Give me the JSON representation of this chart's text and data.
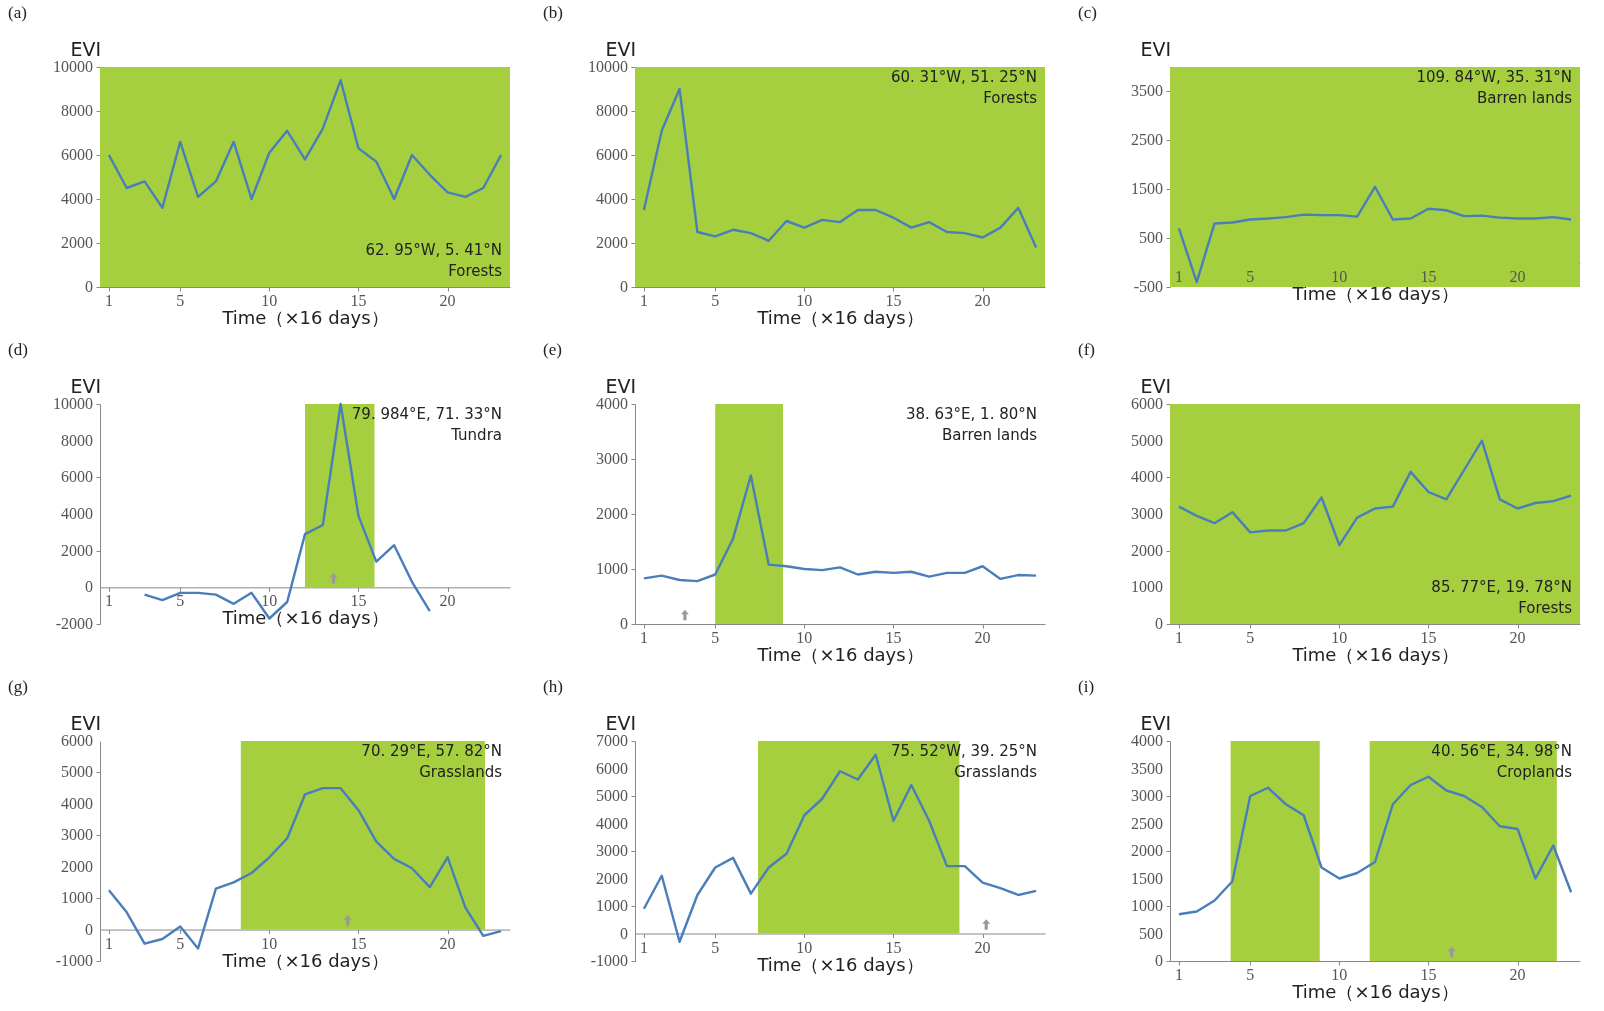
{
  "chart_data": [
    {
      "type": "line",
      "title": "(a)",
      "ylabel": "EVI",
      "xlabel": "Time（×16 days）",
      "x": [
        1,
        2,
        3,
        4,
        5,
        6,
        7,
        8,
        9,
        10,
        11,
        12,
        13,
        14,
        15,
        16,
        17,
        18,
        19,
        20,
        21,
        22,
        23
      ],
      "series": [
        {
          "color": "#4a7ebb",
          "values": [
            6000,
            4500,
            4800,
            3600,
            6600,
            4100,
            4800,
            6600,
            4000,
            6100,
            7100,
            5800,
            7200,
            9400,
            6300,
            5700,
            4000,
            6000,
            5100,
            4300,
            4100,
            4500,
            6000
          ]
        }
      ],
      "xlim": [
        0.5,
        23.5
      ],
      "xticks": [
        1,
        5,
        10,
        15,
        20
      ],
      "ylim": [
        0,
        10000
      ],
      "yticks": [
        0,
        2000,
        4000,
        6000,
        8000,
        10000
      ],
      "bands": [
        {
          "axis": "x",
          "from": 0.5,
          "to": 23.5,
          "color": "#a5cf3f"
        }
      ],
      "annotations": [
        "62. 95°W, 5. 41°N",
        "Forests"
      ],
      "grid": false
    },
    {
      "type": "line",
      "title": "(b)",
      "ylabel": "EVI",
      "xlabel": "Time（×16 days）",
      "x": [
        1,
        2,
        3,
        4,
        5,
        6,
        7,
        8,
        9,
        10,
        11,
        12,
        13,
        14,
        15,
        16,
        17,
        18,
        19,
        20,
        21,
        22,
        23
      ],
      "series": [
        {
          "color": "#4a7ebb",
          "values": [
            3500,
            7100,
            9000,
            2500,
            2300,
            2600,
            2450,
            2100,
            3000,
            2700,
            3050,
            2950,
            3500,
            3500,
            3150,
            2700,
            2950,
            2500,
            2450,
            2250,
            2700,
            3600,
            1800
          ]
        }
      ],
      "xlim": [
        0.5,
        23.5
      ],
      "xticks": [
        1,
        5,
        10,
        15,
        20
      ],
      "ylim": [
        0,
        10000
      ],
      "yticks": [
        0,
        2000,
        4000,
        6000,
        8000,
        10000
      ],
      "bands": [
        {
          "axis": "x",
          "from": 0.5,
          "to": 23.5,
          "color": "#a5cf3f"
        }
      ],
      "annotations": [
        "60. 31°W, 51. 25°N",
        "Forests"
      ],
      "grid": false
    },
    {
      "type": "line",
      "title": "(c)",
      "ylabel": "EVI",
      "xlabel": "Time（×16 days）",
      "x": [
        1,
        2,
        3,
        4,
        5,
        6,
        7,
        8,
        9,
        10,
        11,
        12,
        13,
        14,
        15,
        16,
        17,
        18,
        19,
        20,
        21,
        22,
        23
      ],
      "series": [
        {
          "color": "#4a7ebb",
          "values": [
            700,
            -400,
            800,
            820,
            880,
            900,
            930,
            980,
            970,
            970,
            940,
            1550,
            880,
            900,
            1100,
            1070,
            950,
            960,
            920,
            900,
            900,
            930,
            880
          ]
        }
      ],
      "xlim": [
        0.5,
        23.5
      ],
      "xticks": [
        1,
        5,
        10,
        15,
        20
      ],
      "ylim": [
        -500,
        4000
      ],
      "yticks": [
        -500,
        500,
        1500,
        2500,
        3500
      ],
      "bands": [
        {
          "axis": "x",
          "from": 0.5,
          "to": 23.5,
          "color": "#a5cf3f"
        }
      ],
      "annotations": [
        "109. 84°W, 35. 31°N",
        "Barren lands"
      ],
      "grid": false
    },
    {
      "type": "line",
      "title": "(d)",
      "ylabel": "EVI",
      "xlabel": "Time（×16 days）",
      "x": [
        3,
        4,
        5,
        6,
        7,
        8,
        9,
        10,
        11,
        12,
        13,
        14,
        15,
        16,
        17,
        18,
        19
      ],
      "series": [
        {
          "color": "#4a7ebb",
          "values": [
            -400,
            -700,
            -300,
            -300,
            -400,
            -900,
            -300,
            -1700,
            -800,
            2900,
            3400,
            10000,
            3900,
            1400,
            2300,
            300,
            -1300
          ]
        }
      ],
      "xlim": [
        0.5,
        23.5
      ],
      "xticks": [
        1,
        5,
        10,
        15,
        20
      ],
      "ylim": [
        -2000,
        10000
      ],
      "yticks": [
        -2000,
        0,
        2000,
        4000,
        6000,
        8000,
        10000
      ],
      "bands": [
        {
          "axis": "x",
          "from": 12,
          "to": 15.9,
          "color": "#a5cf3f"
        }
      ],
      "annotations": [
        "79. 984°E, 71. 33°N",
        "Tundra"
      ],
      "grid": false
    },
    {
      "type": "line",
      "title": "(e)",
      "ylabel": "EVI",
      "xlabel": "Time（×16 days）",
      "x": [
        1,
        2,
        3,
        4,
        5,
        6,
        7,
        8,
        9,
        10,
        11,
        12,
        13,
        14,
        15,
        16,
        17,
        18,
        19,
        20,
        21,
        22,
        23
      ],
      "series": [
        {
          "color": "#4a7ebb",
          "values": [
            830,
            880,
            800,
            780,
            900,
            1550,
            2700,
            1080,
            1050,
            1000,
            980,
            1030,
            900,
            950,
            930,
            950,
            860,
            930,
            930,
            1050,
            820,
            890,
            880
          ]
        }
      ],
      "xlim": [
        0.5,
        23.5
      ],
      "xticks": [
        1,
        5,
        10,
        15,
        20
      ],
      "ylim": [
        0,
        4000
      ],
      "yticks": [
        0,
        1000,
        2000,
        3000,
        4000
      ],
      "bands": [
        {
          "axis": "x",
          "from": 5,
          "to": 8.8,
          "color": "#a5cf3f"
        }
      ],
      "annotations": [
        "38. 63°E, 1. 80°N",
        "Barren lands"
      ],
      "grid": false
    },
    {
      "type": "line",
      "title": "(f)",
      "ylabel": "EVI",
      "xlabel": "Time（×16 days）",
      "x": [
        1,
        2,
        3,
        4,
        5,
        6,
        7,
        8,
        9,
        10,
        11,
        12,
        13,
        14,
        15,
        16,
        17,
        18,
        19,
        20,
        21,
        22,
        23
      ],
      "series": [
        {
          "color": "#4a7ebb",
          "values": [
            3200,
            2950,
            2750,
            3050,
            2500,
            2550,
            2550,
            2750,
            3450,
            2150,
            2900,
            3150,
            3200,
            4150,
            3600,
            3400,
            4200,
            5000,
            3400,
            3150,
            3300,
            3350,
            3500
          ]
        }
      ],
      "xlim": [
        0.5,
        23.5
      ],
      "xticks": [
        1,
        5,
        10,
        15,
        20
      ],
      "ylim": [
        0,
        6000
      ],
      "yticks": [
        0,
        1000,
        2000,
        3000,
        4000,
        5000,
        6000
      ],
      "bands": [
        {
          "axis": "x",
          "from": 0.5,
          "to": 23.5,
          "color": "#a5cf3f"
        }
      ],
      "annotations": [
        "85. 77°E, 19. 78°N",
        "Forests"
      ],
      "grid": false
    },
    {
      "type": "line",
      "title": "(g)",
      "ylabel": "EVI",
      "xlabel": "Time（×16 days）",
      "x": [
        1,
        2,
        3,
        4,
        5,
        6,
        7,
        8,
        9,
        10,
        11,
        12,
        13,
        14,
        15,
        16,
        17,
        18,
        19,
        20,
        21,
        22,
        23
      ],
      "series": [
        {
          "color": "#4a7ebb",
          "values": [
            1250,
            550,
            -450,
            -300,
            100,
            -600,
            1300,
            1500,
            1800,
            2300,
            2900,
            4300,
            4500,
            4500,
            3800,
            2800,
            2250,
            1950,
            1350,
            2300,
            700,
            -200,
            -50
          ]
        }
      ],
      "xlim": [
        0.5,
        23.5
      ],
      "xticks": [
        1,
        5,
        10,
        15,
        20
      ],
      "ylim": [
        -1000,
        6000
      ],
      "yticks": [
        -1000,
        0,
        1000,
        2000,
        3000,
        4000,
        5000,
        6000
      ],
      "bands": [
        {
          "axis": "x",
          "from": 8.4,
          "to": 22.1,
          "color": "#a5cf3f"
        }
      ],
      "annotations": [
        "70. 29°E, 57. 82°N",
        "Grasslands"
      ],
      "grid": false
    },
    {
      "type": "line",
      "title": "(h)",
      "ylabel": "EVI",
      "xlabel": "Time（×16 days）",
      "x": [
        1,
        2,
        3,
        4,
        5,
        6,
        7,
        8,
        9,
        10,
        11,
        12,
        13,
        14,
        15,
        16,
        17,
        18,
        19,
        20,
        21,
        22,
        23
      ],
      "series": [
        {
          "color": "#4a7ebb",
          "values": [
            900,
            2100,
            -300,
            1400,
            2400,
            2750,
            1450,
            2400,
            2900,
            4300,
            4900,
            5900,
            5600,
            6500,
            4100,
            5400,
            4100,
            2450,
            2450,
            1850,
            1650,
            1400,
            1550
          ]
        }
      ],
      "xlim": [
        0.5,
        23.5
      ],
      "xticks": [
        1,
        5,
        10,
        15,
        20
      ],
      "ylim": [
        -1000,
        7000
      ],
      "yticks": [
        -1000,
        0,
        1000,
        2000,
        3000,
        4000,
        5000,
        6000,
        7000
      ],
      "bands": [
        {
          "axis": "x",
          "from": 7.4,
          "to": 18.7,
          "color": "#a5cf3f"
        }
      ],
      "annotations": [
        "75. 52°W, 39. 25°N",
        "Grasslands"
      ],
      "grid": false
    },
    {
      "type": "line",
      "title": "(i)",
      "ylabel": "EVI",
      "xlabel": "Time（×16 days）",
      "x": [
        1,
        2,
        3,
        4,
        5,
        6,
        7,
        8,
        9,
        10,
        11,
        12,
        13,
        14,
        15,
        16,
        17,
        18,
        19,
        20,
        21,
        22,
        23
      ],
      "series": [
        {
          "color": "#4a7ebb",
          "values": [
            850,
            900,
            1100,
            1450,
            3000,
            3150,
            2850,
            2650,
            1700,
            1500,
            1600,
            1800,
            2850,
            3200,
            3350,
            3100,
            3000,
            2800,
            2450,
            2400,
            1500,
            2100,
            1250
          ]
        }
      ],
      "xlim": [
        0.5,
        23.5
      ],
      "xticks": [
        1,
        5,
        10,
        15,
        20
      ],
      "ylim": [
        0,
        4000
      ],
      "yticks": [
        0,
        500,
        1000,
        1500,
        2000,
        2500,
        3000,
        3500,
        4000
      ],
      "bands": [
        {
          "axis": "x",
          "from": 3.9,
          "to": 8.9,
          "color": "#a5cf3f"
        },
        {
          "axis": "x",
          "from": 11.7,
          "to": 22.2,
          "color": "#a5cf3f"
        }
      ],
      "annotations": [
        "40. 56°E, 34. 98°N",
        "Croplands"
      ],
      "grid": false
    }
  ]
}
